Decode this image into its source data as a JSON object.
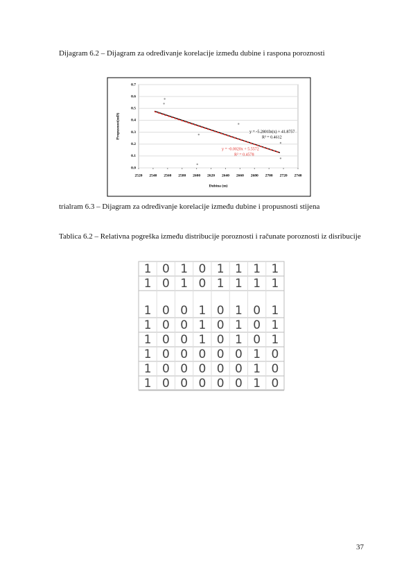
{
  "paragraphs": [
    "Dijagram 6.2 – Dijagram za određivanje korelacije između dubine i raspona poroznosti",
    "trialram 6.3 – Dijagram za određivanje korelacije između dubine i propusnosti stijena",
    "Tablica 6.2 – Relativna pogreška između distribucije poroznosti i računate poroznosti iz disribucije"
  ],
  "chart_data": {
    "type": "scatter",
    "x_label": "Dubina (m)",
    "y_label": "Propusnost(mD)",
    "series": [
      {
        "color": "#999999",
        "x": [
          2556,
          2555,
          2603,
          2601,
          2658,
          2716,
          2716
        ],
        "values": [
          0.58,
          0.54,
          0.28,
          0.03,
          0.37,
          0.21,
          0.08
        ]
      }
    ],
    "trendlines": [
      {
        "label": "y = -5.2801ln(x) + 41.8757",
        "r2": "R² = 0.4612",
        "color": "#000000",
        "x": [
          2542,
          2715
        ],
        "values": [
          0.477,
          0.128
        ]
      },
      {
        "label": "y = -0.0020x + 5.5572",
        "r2": "R² = 0.4578",
        "color": "#e0302a",
        "x": [
          2542,
          2715
        ],
        "values": [
          0.473,
          0.127
        ]
      }
    ],
    "xlim": [
      2520,
      2740
    ],
    "xticks": [
      2520,
      2540,
      2560,
      2580,
      2600,
      2620,
      2640,
      2660,
      2680,
      2700,
      2720,
      2740
    ],
    "ylim": [
      0,
      0.7
    ],
    "yticks": [
      {
        "value": 0,
        "label": "0.0"
      },
      0.1,
      0.2,
      0.3,
      0.4,
      0.5,
      0.6,
      0.7
    ],
    "grid": true
  },
  "table": {
    "rows": [
      [
        "1",
        "0",
        "1",
        "0",
        "1",
        "1",
        "1",
        "1"
      ],
      [
        "1",
        "0",
        "1",
        "0",
        "1",
        "1",
        "1",
        "1"
      ],
      [
        "1",
        "0",
        "0",
        "1",
        "0",
        "1",
        "0",
        "1"
      ],
      [
        "1",
        "0",
        "0",
        "1",
        "0",
        "1",
        "0",
        "1"
      ],
      [
        "1",
        "0",
        "0",
        "1",
        "0",
        "1",
        "0",
        "1"
      ],
      [
        "1",
        "0",
        "0",
        "0",
        "0",
        "0",
        "1",
        "0"
      ],
      [
        "1",
        "0",
        "0",
        "0",
        "0",
        "0",
        "1",
        "0"
      ],
      [
        "1",
        "0",
        "0",
        "0",
        "0",
        "0",
        "1",
        "0"
      ]
    ]
  },
  "page_number": "37"
}
